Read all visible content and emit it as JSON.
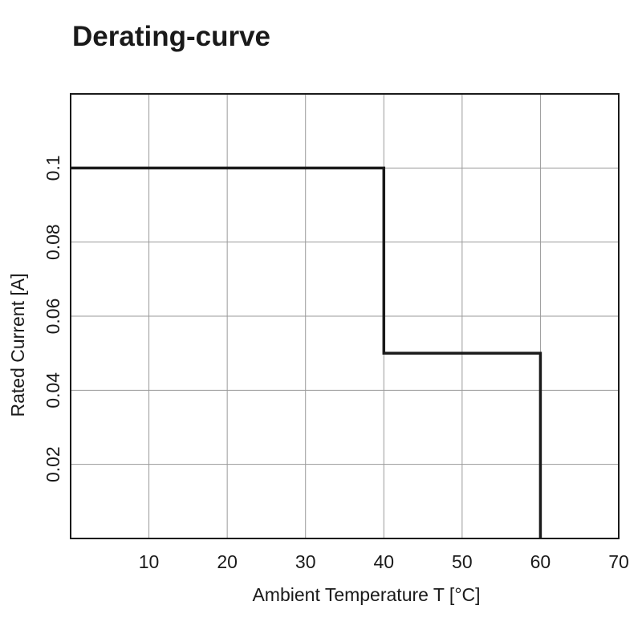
{
  "chart_data": {
    "type": "line",
    "title": "Derating-curve",
    "xlabel": "Ambient Temperature T [°C]",
    "ylabel": "Rated Current [A]",
    "xlim": [
      0,
      70
    ],
    "ylim": [
      0,
      0.12
    ],
    "x_ticks": [
      10,
      20,
      30,
      40,
      50,
      60,
      70
    ],
    "x_tick_labels": [
      "10",
      "20",
      "30",
      "40",
      "50",
      "60",
      "70"
    ],
    "y_ticks": [
      0.02,
      0.04,
      0.06,
      0.08,
      0.1
    ],
    "y_tick_labels": [
      "0.02",
      "0.04",
      "0.06",
      "0.08",
      "0.1"
    ],
    "grid": true,
    "series": [
      {
        "x": [
          0,
          40,
          40,
          60,
          60
        ],
        "y": [
          0.1,
          0.1,
          0.05,
          0.05,
          0
        ],
        "color": "#1a1a1a"
      }
    ]
  }
}
